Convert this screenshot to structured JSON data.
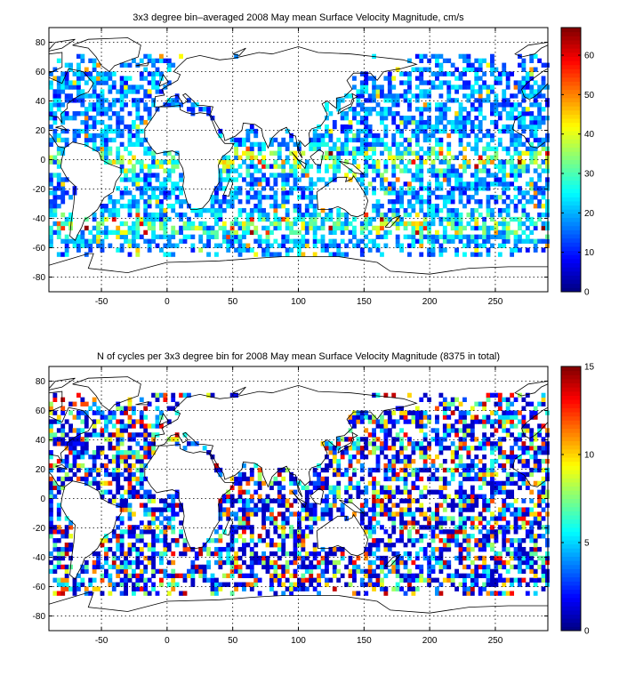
{
  "chart_data": [
    {
      "type": "heatmap",
      "title": "3x3 degree bin–averaged 2008 May mean Surface Velocity Magnitude, cm/s",
      "x_range": [
        -90,
        290
      ],
      "y_range": [
        -90,
        90
      ],
      "x_ticks": [
        -50,
        0,
        50,
        100,
        150,
        200,
        250
      ],
      "y_ticks": [
        80,
        60,
        40,
        20,
        0,
        -20,
        -40,
        -60,
        -80
      ],
      "grid": true,
      "bin_size_deg": 3,
      "colorbar": {
        "min": 0,
        "max": 67,
        "ticks": [
          0,
          10,
          20,
          30,
          40,
          50,
          60
        ],
        "colormap": "jet"
      },
      "cell_value_range": [
        0,
        67
      ]
    },
    {
      "type": "heatmap",
      "title": "N of cycles per 3x3 degree bin for 2008 May mean Surface Velocity Magnitude (8375 in total)",
      "x_range": [
        -90,
        290
      ],
      "y_range": [
        -90,
        90
      ],
      "x_ticks": [
        -50,
        0,
        50,
        100,
        150,
        200,
        250
      ],
      "y_ticks": [
        80,
        60,
        40,
        20,
        0,
        -20,
        -40,
        -60,
        -80
      ],
      "grid": true,
      "bin_size_deg": 3,
      "colorbar": {
        "min": 0,
        "max": 15,
        "ticks": [
          0,
          5,
          10,
          15
        ],
        "colormap": "jet"
      },
      "cell_value_range": [
        0,
        15
      ]
    }
  ]
}
